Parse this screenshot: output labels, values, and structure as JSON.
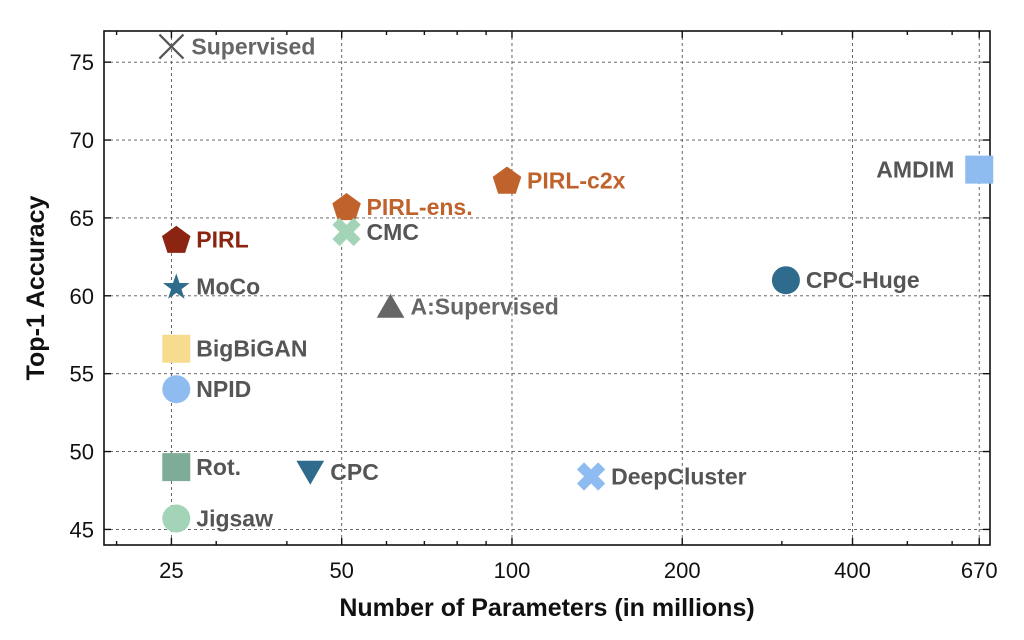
{
  "chart_data": {
    "type": "scatter",
    "title": "",
    "xlabel": "Number of Parameters (in millions)",
    "ylabel": "Top-1 Accuracy",
    "x_scale": "log",
    "xlim": [
      19,
      700
    ],
    "ylim": [
      44,
      77
    ],
    "grid": true,
    "x_ticks": [
      25,
      50,
      100,
      200,
      400,
      670
    ],
    "y_ticks": [
      45,
      50,
      55,
      60,
      65,
      70,
      75
    ],
    "points": [
      {
        "label": "Supervised",
        "x": 25,
        "y": 76.0,
        "marker": "x",
        "color": "#555555",
        "label_color": "#666666"
      },
      {
        "label": "AMDIM",
        "x": 670,
        "y": 68.1,
        "marker": "square",
        "color": "#8fbcf0",
        "label_color": "#555555"
      },
      {
        "label": "PIRL-c2x",
        "x": 98,
        "y": 67.4,
        "marker": "pentagon",
        "color": "#c0622b",
        "label_color": "#c0622b"
      },
      {
        "label": "PIRL-ens.",
        "x": 51,
        "y": 65.7,
        "marker": "pentagon",
        "color": "#c0622b",
        "label_color": "#c0622b"
      },
      {
        "label": "CMC",
        "x": 51,
        "y": 64.1,
        "marker": "X",
        "color": "#a3d4b8",
        "label_color": "#555555"
      },
      {
        "label": "PIRL",
        "x": 25.5,
        "y": 63.6,
        "marker": "pentagon",
        "color": "#8b2512",
        "label_color": "#8b2512"
      },
      {
        "label": "CPC-Huge",
        "x": 305,
        "y": 61.0,
        "marker": "circle",
        "color": "#2e6b8c",
        "label_color": "#555555"
      },
      {
        "label": "MoCo",
        "x": 25.5,
        "y": 60.6,
        "marker": "star",
        "color": "#2e6b8c",
        "label_color": "#555555"
      },
      {
        "label": "A:Supervised",
        "x": 61,
        "y": 59.3,
        "marker": "triangle-up",
        "color": "#666666",
        "label_color": "#666666"
      },
      {
        "label": "BigBiGAN",
        "x": 25.5,
        "y": 56.6,
        "marker": "square",
        "color": "#f7dc8f",
        "label_color": "#555555"
      },
      {
        "label": "NPID",
        "x": 25.5,
        "y": 54.0,
        "marker": "circle",
        "color": "#8fbcf0",
        "label_color": "#555555"
      },
      {
        "label": "Rot.",
        "x": 25.5,
        "y": 49.0,
        "marker": "square",
        "color": "#7fac98",
        "label_color": "#555555"
      },
      {
        "label": "CPC",
        "x": 44,
        "y": 48.7,
        "marker": "triangle-down",
        "color": "#2e6b8c",
        "label_color": "#555555"
      },
      {
        "label": "DeepCluster",
        "x": 138,
        "y": 48.4,
        "marker": "X",
        "color": "#8fbcf0",
        "label_color": "#555555"
      },
      {
        "label": "Jigsaw",
        "x": 25.5,
        "y": 45.7,
        "marker": "circle",
        "color": "#a3d4b8",
        "label_color": "#555555"
      }
    ]
  }
}
